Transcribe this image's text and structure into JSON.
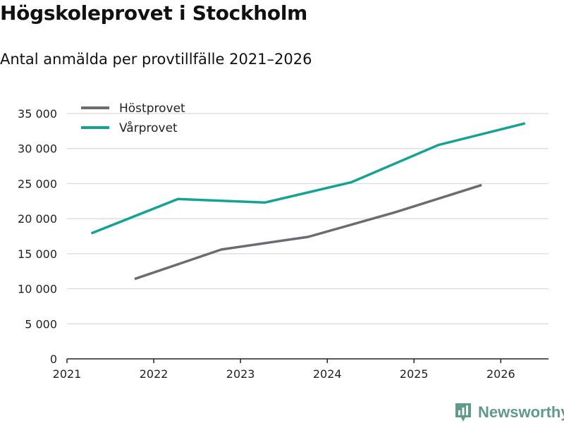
{
  "title": "Högskoleprovet i Stockholm",
  "subtitle": "Antal anmälda per provtillfälle 2021–2026",
  "brand": "Newsworthy",
  "colors": {
    "hostprovet": "#6b6b73",
    "varprovet": "#12a393",
    "grid": "#d9d9d9",
    "axis": "#222222",
    "brand": "#5f9a8a"
  },
  "chart_data": {
    "type": "line",
    "title": "Högskoleprovet i Stockholm",
    "subtitle": "Antal anmälda per provtillfälle 2021–2026",
    "xlabel": "",
    "ylabel": "",
    "xlim": [
      2021,
      2026.55
    ],
    "ylim": [
      0,
      35000
    ],
    "x_ticks": [
      "2021",
      "2022",
      "2023",
      "2024",
      "2025",
      "2026"
    ],
    "y_ticks": [
      "0",
      "5 000",
      "10 000",
      "15 000",
      "20 000",
      "25 000",
      "30 000",
      "35 000"
    ],
    "grid": true,
    "legend_position": "top-left",
    "series": [
      {
        "name": "Höstprovet",
        "color": "#6b6b73",
        "x": [
          2021.78,
          2022.78,
          2023.78,
          2024.78,
          2025.78
        ],
        "y": [
          11400,
          15600,
          17400,
          20900,
          24800
        ]
      },
      {
        "name": "Vårprovet",
        "color": "#12a393",
        "x": [
          2021.28,
          2022.28,
          2023.28,
          2024.28,
          2025.28,
          2026.28
        ],
        "y": [
          17900,
          22800,
          22300,
          25200,
          30500,
          33600
        ]
      }
    ]
  }
}
